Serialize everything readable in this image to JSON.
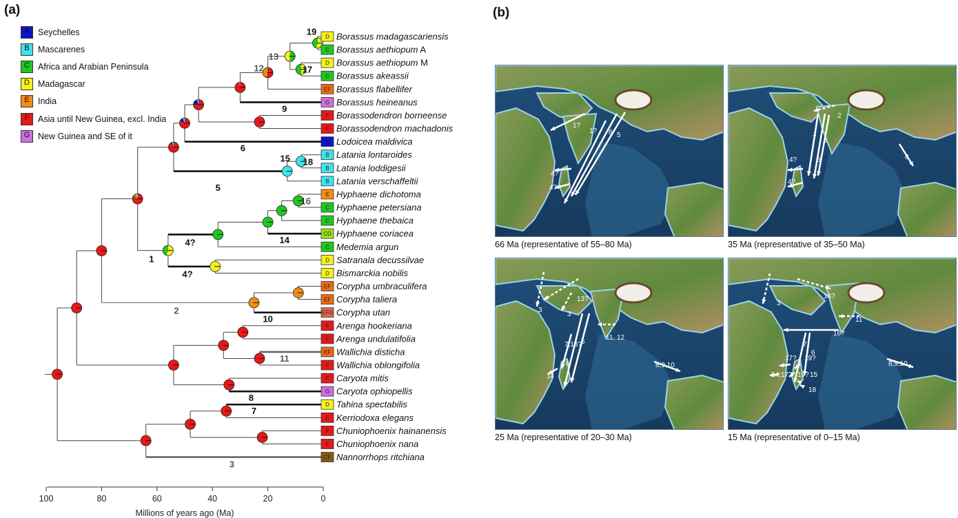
{
  "panel_a": {
    "letter": "(a)",
    "legend": [
      {
        "code": "A",
        "label": "Seychelles",
        "color": "#0a14c8"
      },
      {
        "code": "B",
        "label": "Mascarenes",
        "color": "#3fe3ec"
      },
      {
        "code": "C",
        "label": "Africa and Arabian Peninsula",
        "color": "#1fc81f"
      },
      {
        "code": "D",
        "label": "Madagascar",
        "color": "#f5f21a"
      },
      {
        "code": "E",
        "label": "India",
        "color": "#f28c14"
      },
      {
        "code": "F",
        "label": "Asia until New Guinea, excl. India",
        "color": "#e81818"
      },
      {
        "code": "G",
        "label": "New Guinea and SE of it",
        "color": "#d06ee0"
      }
    ],
    "tips": [
      {
        "name": "Borassus madagascariensis",
        "suffix": "",
        "state": "D",
        "color": "#f5f21a"
      },
      {
        "name": "Borassus aethiopum",
        "suffix": "A",
        "state": "C",
        "color": "#1fc81f"
      },
      {
        "name": "Borassus aethiopum",
        "suffix": "M",
        "state": "D",
        "color": "#f5f21a"
      },
      {
        "name": "Borassus akeassii",
        "suffix": "",
        "state": "C",
        "color": "#1fc81f"
      },
      {
        "name": "Borassus flabellifer",
        "suffix": "",
        "state": "EF",
        "color": "#f06a14"
      },
      {
        "name": "Borassus heineanus",
        "suffix": "",
        "state": "G",
        "color": "#d06ee0"
      },
      {
        "name": "Borassodendron borneense",
        "suffix": "",
        "state": "F",
        "color": "#e81818"
      },
      {
        "name": "Borassodendron machadonis",
        "suffix": "",
        "state": "F",
        "color": "#e81818"
      },
      {
        "name": "Lodoicea maldivica",
        "suffix": "",
        "state": "A",
        "color": "#0a14c8"
      },
      {
        "name": "Latania lontaroides",
        "suffix": "",
        "state": "B",
        "color": "#3fe3ec"
      },
      {
        "name": "Latania loddigesii",
        "suffix": "",
        "state": "B",
        "color": "#3fe3ec"
      },
      {
        "name": "Latania verschaffeltii",
        "suffix": "",
        "state": "B",
        "color": "#3fe3ec"
      },
      {
        "name": "Hyphaene dichotoma",
        "suffix": "",
        "state": "E",
        "color": "#f28c14"
      },
      {
        "name": "Hyphaene petersiana",
        "suffix": "",
        "state": "C",
        "color": "#1fc81f"
      },
      {
        "name": "Hyphaene thebaica",
        "suffix": "",
        "state": "C",
        "color": "#1fc81f"
      },
      {
        "name": "Hyphaene coriacea",
        "suffix": "",
        "state": "CD",
        "color": "#9ee01a"
      },
      {
        "name": "Medemia argun",
        "suffix": "",
        "state": "C",
        "color": "#1fc81f"
      },
      {
        "name": "Satranala decussilvae",
        "suffix": "",
        "state": "D",
        "color": "#f5f21a"
      },
      {
        "name": "Bismarckia nobilis",
        "suffix": "",
        "state": "D",
        "color": "#f5f21a"
      },
      {
        "name": "Corypha umbraculifera",
        "suffix": "",
        "state": "EF",
        "color": "#f06a14"
      },
      {
        "name": "Corypha taliera",
        "suffix": "",
        "state": "EF",
        "color": "#f06a14"
      },
      {
        "name": "Corypha utan",
        "suffix": "",
        "state": "EFG",
        "color": "#e8664a"
      },
      {
        "name": "Arenga hookeriana",
        "suffix": "",
        "state": "F",
        "color": "#e81818"
      },
      {
        "name": "Arenga undulatifolia",
        "suffix": "",
        "state": "F",
        "color": "#e81818"
      },
      {
        "name": "Wallichia disticha",
        "suffix": "",
        "state": "EF",
        "color": "#f06a14"
      },
      {
        "name": "Wallichia oblongifolia",
        "suffix": "",
        "state": "F",
        "color": "#e81818"
      },
      {
        "name": "Caryota mitis",
        "suffix": "",
        "state": "F",
        "color": "#e81818"
      },
      {
        "name": "Caryota ophiopellis",
        "suffix": "",
        "state": "G",
        "color": "#d06ee0"
      },
      {
        "name": "Tahina spectabilis",
        "suffix": "",
        "state": "D",
        "color": "#f5f21a"
      },
      {
        "name": "Kerriodoxa elegans",
        "suffix": "",
        "state": "F",
        "color": "#e81818"
      },
      {
        "name": "Chuniophoenix hainanensis",
        "suffix": "",
        "state": "F",
        "color": "#e81818"
      },
      {
        "name": "Chuniophoenix nana",
        "suffix": "",
        "state": "F",
        "color": "#e81818"
      },
      {
        "name": "Nannorrhops ritchiana",
        "suffix": "",
        "state": "CF",
        "color": "#8a5a14"
      }
    ],
    "node_labels": [
      {
        "text": "19",
        "bold": true,
        "gray": false,
        "near": "n_bmad"
      },
      {
        "text": "17",
        "bold": true,
        "gray": false,
        "near": "n_aeth"
      },
      {
        "text": "13",
        "bold": false,
        "gray": false,
        "near": "n_afr"
      },
      {
        "text": "12",
        "bold": true,
        "gray": true,
        "near": "n_fla"
      },
      {
        "text": "9",
        "bold": true,
        "gray": false,
        "near": "heineanus"
      },
      {
        "text": "6",
        "bold": true,
        "gray": false,
        "near": "lodoicea"
      },
      {
        "text": "15",
        "bold": true,
        "gray": false,
        "near": "n_lat"
      },
      {
        "text": "18",
        "bold": true,
        "gray": false,
        "near": "n_lat2"
      },
      {
        "text": "5",
        "bold": true,
        "gray": false,
        "near": "latania"
      },
      {
        "text": "16",
        "bold": false,
        "gray": false,
        "near": "n_hyp"
      },
      {
        "text": "14",
        "bold": true,
        "gray": false,
        "near": "coriacea"
      },
      {
        "text": "4?",
        "bold": true,
        "gray": false,
        "near": "hyph_clade"
      },
      {
        "text": "1",
        "bold": true,
        "gray": false,
        "near": "n_hyphaeneae"
      },
      {
        "text": "4?",
        "bold": true,
        "gray": false,
        "near": "satranala"
      },
      {
        "text": "2",
        "bold": true,
        "gray": true,
        "near": "corypha_branch"
      },
      {
        "text": "10",
        "bold": true,
        "gray": false,
        "near": "utan"
      },
      {
        "text": "11",
        "bold": true,
        "gray": true,
        "near": "disticha"
      },
      {
        "text": "8",
        "bold": true,
        "gray": false,
        "near": "ophiopellis"
      },
      {
        "text": "7",
        "bold": true,
        "gray": false,
        "near": "tahina"
      },
      {
        "text": "3",
        "bold": true,
        "gray": true,
        "near": "nannorrhops"
      }
    ],
    "axis": {
      "label": "Millions of years ago (Ma)",
      "ticks": [
        "100",
        "80",
        "60",
        "40",
        "20",
        "0"
      ]
    }
  },
  "panel_b": {
    "letter": "(b)",
    "maps": [
      {
        "caption": "66 Ma (representative of 55–80 Ma)",
        "labels": [
          "1?",
          "1?",
          "6",
          "5",
          "4?",
          "4?"
        ]
      },
      {
        "caption": "35 Ma (representative of 35–50 Ma)",
        "labels": [
          "2",
          "7",
          "5",
          "6",
          "8",
          "4?",
          "4?"
        ]
      },
      {
        "caption": "25 Ma (representative of 20–30 Ma)",
        "labels": [
          "3",
          "13?",
          "3",
          "5",
          "7,13?",
          "6",
          "11, 12",
          "14",
          "8,9,10"
        ]
      },
      {
        "caption": "15 Ma (representative of 0–15 Ma)",
        "labels": [
          "3",
          "16?",
          "11",
          "16?",
          "7",
          "6",
          "17?",
          "19?",
          "14,17?",
          "19?",
          "15",
          "18",
          "8,9,10"
        ]
      }
    ]
  }
}
